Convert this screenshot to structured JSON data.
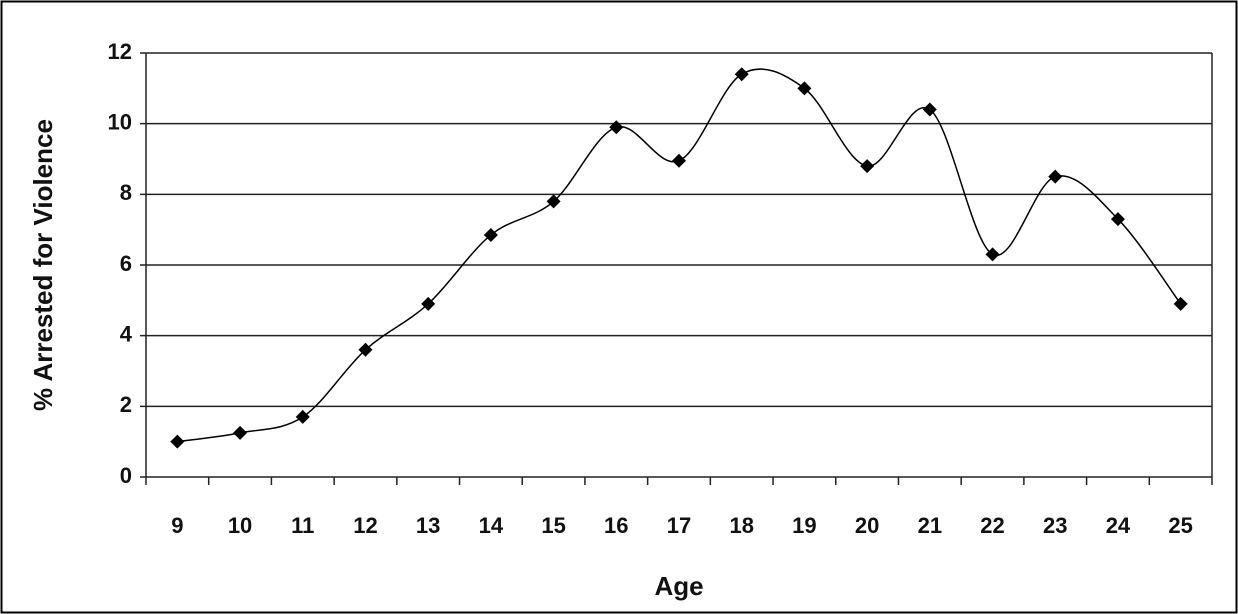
{
  "chart_data": {
    "type": "line",
    "x_label": "Age",
    "y_label": "% Arrested for Violence",
    "categories": [
      "9",
      "10",
      "11",
      "12",
      "13",
      "14",
      "15",
      "16",
      "17",
      "18",
      "19",
      "20",
      "21",
      "22",
      "23",
      "24",
      "25"
    ],
    "values": [
      1.0,
      1.25,
      1.7,
      3.6,
      4.9,
      6.85,
      7.8,
      9.9,
      8.95,
      11.4,
      11.0,
      8.8,
      10.4,
      6.3,
      8.5,
      7.3,
      4.9
    ],
    "color": "#000000",
    "smooth": true,
    "grid": true,
    "ylim": [
      0,
      12
    ],
    "yticks": [
      0,
      2,
      4,
      6,
      8,
      10,
      12
    ]
  }
}
